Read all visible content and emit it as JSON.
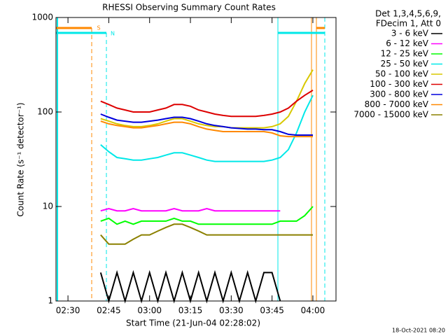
{
  "chart_data": {
    "type": "line",
    "title": "RHESSI Observing Summary Count Rates",
    "x_label": "Start Time (21-Jun-04 02:28:02)",
    "y_label": "Count Rate (s⁻¹ detector⁻¹)",
    "legend_header": [
      "Det 1,3,4,5,6,9,",
      "FDecim 1, Att 0"
    ],
    "footer": "18-Oct-2021 08:20",
    "annotations": [
      "S",
      "N"
    ],
    "log_scale_y": true,
    "legend": "outside-right",
    "xlim": [
      145.6,
      248.5
    ],
    "xticks": [
      {
        "value": 150,
        "label": "02:30"
      },
      {
        "value": 165,
        "label": "02:45"
      },
      {
        "value": 180,
        "label": "03:00"
      },
      {
        "value": 195,
        "label": "03:15"
      },
      {
        "value": 210,
        "label": "03:30"
      },
      {
        "value": 225,
        "label": "03:45"
      },
      {
        "value": 240,
        "label": "04:00"
      }
    ],
    "ylim": [
      1,
      1000
    ],
    "yticks": [
      1,
      10,
      100,
      1000
    ],
    "x": [
      162,
      165,
      168,
      171,
      174,
      177,
      180,
      183,
      186,
      189,
      192,
      195,
      198,
      201,
      204,
      207,
      210,
      213,
      216,
      219,
      222,
      225,
      228,
      231,
      234,
      237,
      240
    ],
    "series": [
      {
        "name": "3 - 6 keV",
        "color": "#000000",
        "values": [
          2,
          1,
          2,
          1,
          2,
          1,
          2,
          1,
          2,
          1,
          2,
          1,
          2,
          1,
          2,
          1,
          2,
          1,
          2,
          1,
          2,
          2,
          1,
          null,
          null,
          null,
          null
        ]
      },
      {
        "name": "6 - 12 keV",
        "color": "#ff00ff",
        "values": [
          9,
          9.5,
          9,
          9,
          9.5,
          9,
          9,
          9,
          9,
          9.5,
          9,
          9,
          9,
          9.5,
          9,
          9,
          9,
          9,
          9,
          9,
          9,
          9,
          9,
          null,
          null,
          null,
          null
        ]
      },
      {
        "name": "12 - 25 keV",
        "color": "#00ff00",
        "values": [
          7,
          7.5,
          6.5,
          7,
          6.5,
          7,
          7,
          7,
          7,
          7.5,
          7,
          7,
          6.5,
          6.5,
          6.5,
          6.5,
          6.5,
          6.5,
          6.5,
          6.5,
          6.5,
          6.5,
          7,
          7,
          7,
          8,
          10
        ]
      },
      {
        "name": "25 - 50 keV",
        "color": "#00e8e8",
        "values": [
          45,
          38,
          33,
          32,
          31,
          31,
          32,
          33,
          35,
          37,
          37,
          35,
          33,
          31,
          30,
          30,
          30,
          30,
          30,
          30,
          30,
          31,
          33,
          40,
          60,
          100,
          150
        ]
      },
      {
        "name": "50 - 100 keV",
        "color": "#d8c800",
        "values": [
          85,
          80,
          75,
          72,
          70,
          70,
          72,
          75,
          80,
          85,
          85,
          80,
          75,
          72,
          70,
          70,
          68,
          68,
          68,
          68,
          68,
          70,
          75,
          90,
          130,
          200,
          280
        ]
      },
      {
        "name": "100 - 300 keV",
        "color": "#dd0000",
        "values": [
          130,
          120,
          110,
          105,
          100,
          100,
          100,
          105,
          110,
          120,
          120,
          115,
          105,
          100,
          95,
          92,
          90,
          90,
          90,
          90,
          92,
          95,
          100,
          110,
          130,
          150,
          170
        ]
      },
      {
        "name": "300 - 800 keV",
        "color": "#0000dd",
        "values": [
          95,
          88,
          82,
          80,
          78,
          78,
          80,
          82,
          85,
          88,
          88,
          85,
          80,
          75,
          72,
          70,
          68,
          67,
          66,
          66,
          65,
          65,
          62,
          58,
          57,
          57,
          57
        ]
      },
      {
        "name": "800 - 7000 keV",
        "color": "#ff8800",
        "values": [
          80,
          75,
          72,
          70,
          68,
          68,
          70,
          72,
          75,
          78,
          78,
          75,
          70,
          66,
          64,
          62,
          62,
          62,
          62,
          62,
          62,
          60,
          56,
          55,
          55,
          55,
          55
        ]
      },
      {
        "name": "7000 - 15000 keV",
        "color": "#8b8000",
        "values": [
          5,
          4,
          4,
          4,
          4.5,
          5,
          5,
          5.5,
          6,
          6.5,
          6.5,
          6,
          5.5,
          5,
          5,
          5,
          5,
          5,
          5,
          5,
          5,
          5,
          5,
          5,
          5,
          5,
          5
        ]
      }
    ]
  }
}
